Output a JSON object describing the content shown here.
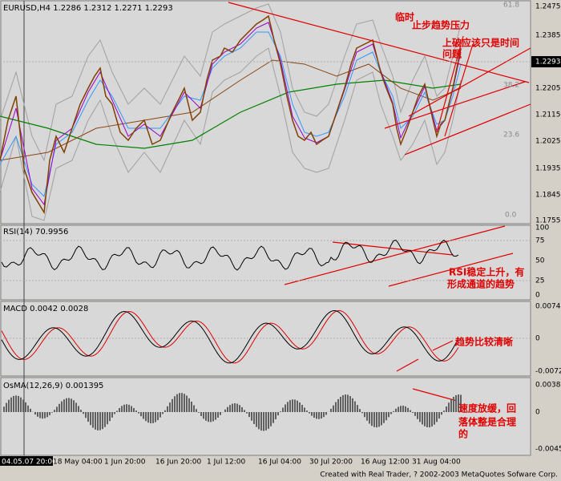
{
  "main": {
    "header": "EURUSD,H4  1.2286 1.2312 1.2271 1.2293",
    "price_axis": [
      "1.2475",
      "1.2385",
      "1.2205",
      "1.2115",
      "1.2025",
      "1.1935",
      "1.1845",
      "1.1755"
    ],
    "current_price": "1.2293",
    "fib_levels": [
      "61.8",
      "38.2",
      "23.6",
      "0.0"
    ],
    "notes": [
      "临时",
      "止步趋势压力",
      "上破应该只是时间",
      "问题"
    ]
  },
  "rsi": {
    "label": "RSI(14) 70.9956",
    "axis": [
      "100",
      "75",
      "50",
      "25",
      "0"
    ],
    "notes": [
      "RSI稳定上升，有",
      "形成通道的趋势"
    ]
  },
  "macd": {
    "label": "MACD 0.0042 0.0028",
    "axis": [
      "0.0074",
      "0",
      "-0.0072"
    ],
    "notes": [
      "趋势比较清晰"
    ]
  },
  "osma": {
    "label": "OsMA(12,26,9) 0.001395",
    "axis": [
      "0.00382",
      "0",
      "-0.00457"
    ],
    "notes": [
      "速度放缓，回",
      "落体整是合理",
      "的"
    ]
  },
  "time_axis": {
    "cursor": "04.05.07 20:00",
    "labels": [
      "18 May 04:00",
      "1 Jun 20:00",
      "16 Jun 20:00",
      "1 Jul 12:00",
      "16 Jul 04:00",
      "30 Jul 20:00",
      "16 Aug 12:00",
      "31 Aug 04:00"
    ]
  },
  "footer": "Created with Real Trader, ? 2002-2003 MetaQuotes Sofware Corp."
}
